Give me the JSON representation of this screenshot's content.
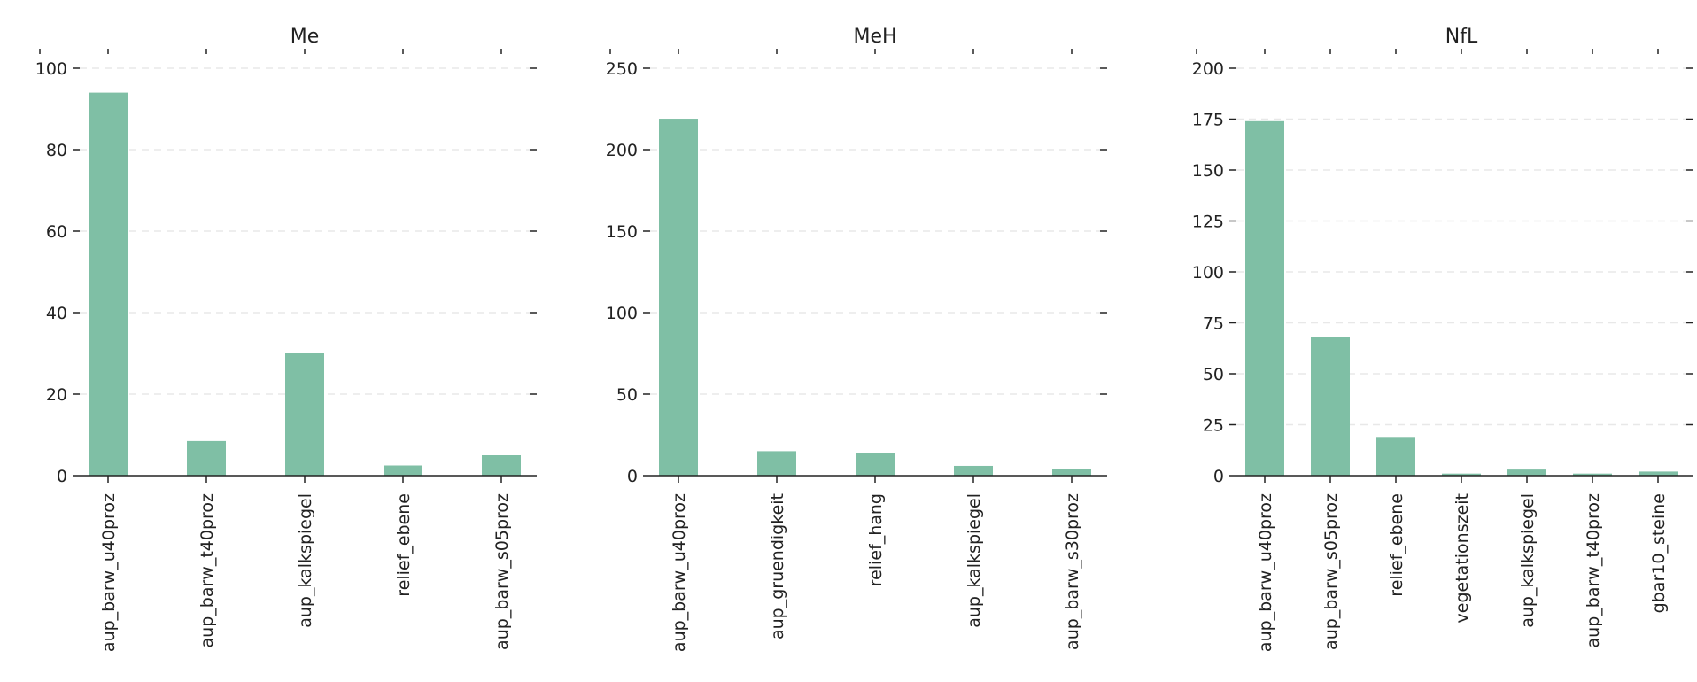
{
  "colors": {
    "bar": "#7fbfa5",
    "axis": "#222222",
    "grid": "#e8e8e8"
  },
  "chart_data": [
    {
      "type": "bar",
      "title": "Me",
      "categories": [
        "aup_barw_u40proz",
        "aup_barw_t40proz",
        "aup_kalkspiegel",
        "relief_ebene",
        "aup_barw_s05proz"
      ],
      "values": [
        94,
        8.5,
        30,
        2.5,
        5
      ],
      "yticks": [
        0,
        20,
        40,
        60,
        80,
        100
      ],
      "ylim": [
        0,
        100
      ],
      "grid": "y dashed",
      "xlabel": "",
      "ylabel": ""
    },
    {
      "type": "bar",
      "title": "MeH",
      "categories": [
        "aup_barw_u40proz",
        "aup_gruendigkeit",
        "relief_hang",
        "aup_kalkspiegel",
        "aup_barw_s30proz"
      ],
      "values": [
        219,
        15,
        14,
        6,
        4
      ],
      "yticks": [
        0,
        50,
        100,
        150,
        200,
        250
      ],
      "ylim": [
        0,
        250
      ],
      "grid": "y dashed",
      "xlabel": "",
      "ylabel": ""
    },
    {
      "type": "bar",
      "title": "NfL",
      "categories": [
        "aup_barw_u40proz",
        "aup_barw_s05proz",
        "relief_ebene",
        "vegetationszeit",
        "aup_kalkspiegel",
        "aup_barw_t40proz",
        "gbar10_steine"
      ],
      "values": [
        174,
        68,
        19,
        1,
        3,
        1,
        2
      ],
      "yticks": [
        0,
        25,
        50,
        75,
        100,
        125,
        150,
        175,
        200
      ],
      "ylim": [
        0,
        200
      ],
      "grid": "y dashed",
      "xlabel": "",
      "ylabel": ""
    }
  ]
}
